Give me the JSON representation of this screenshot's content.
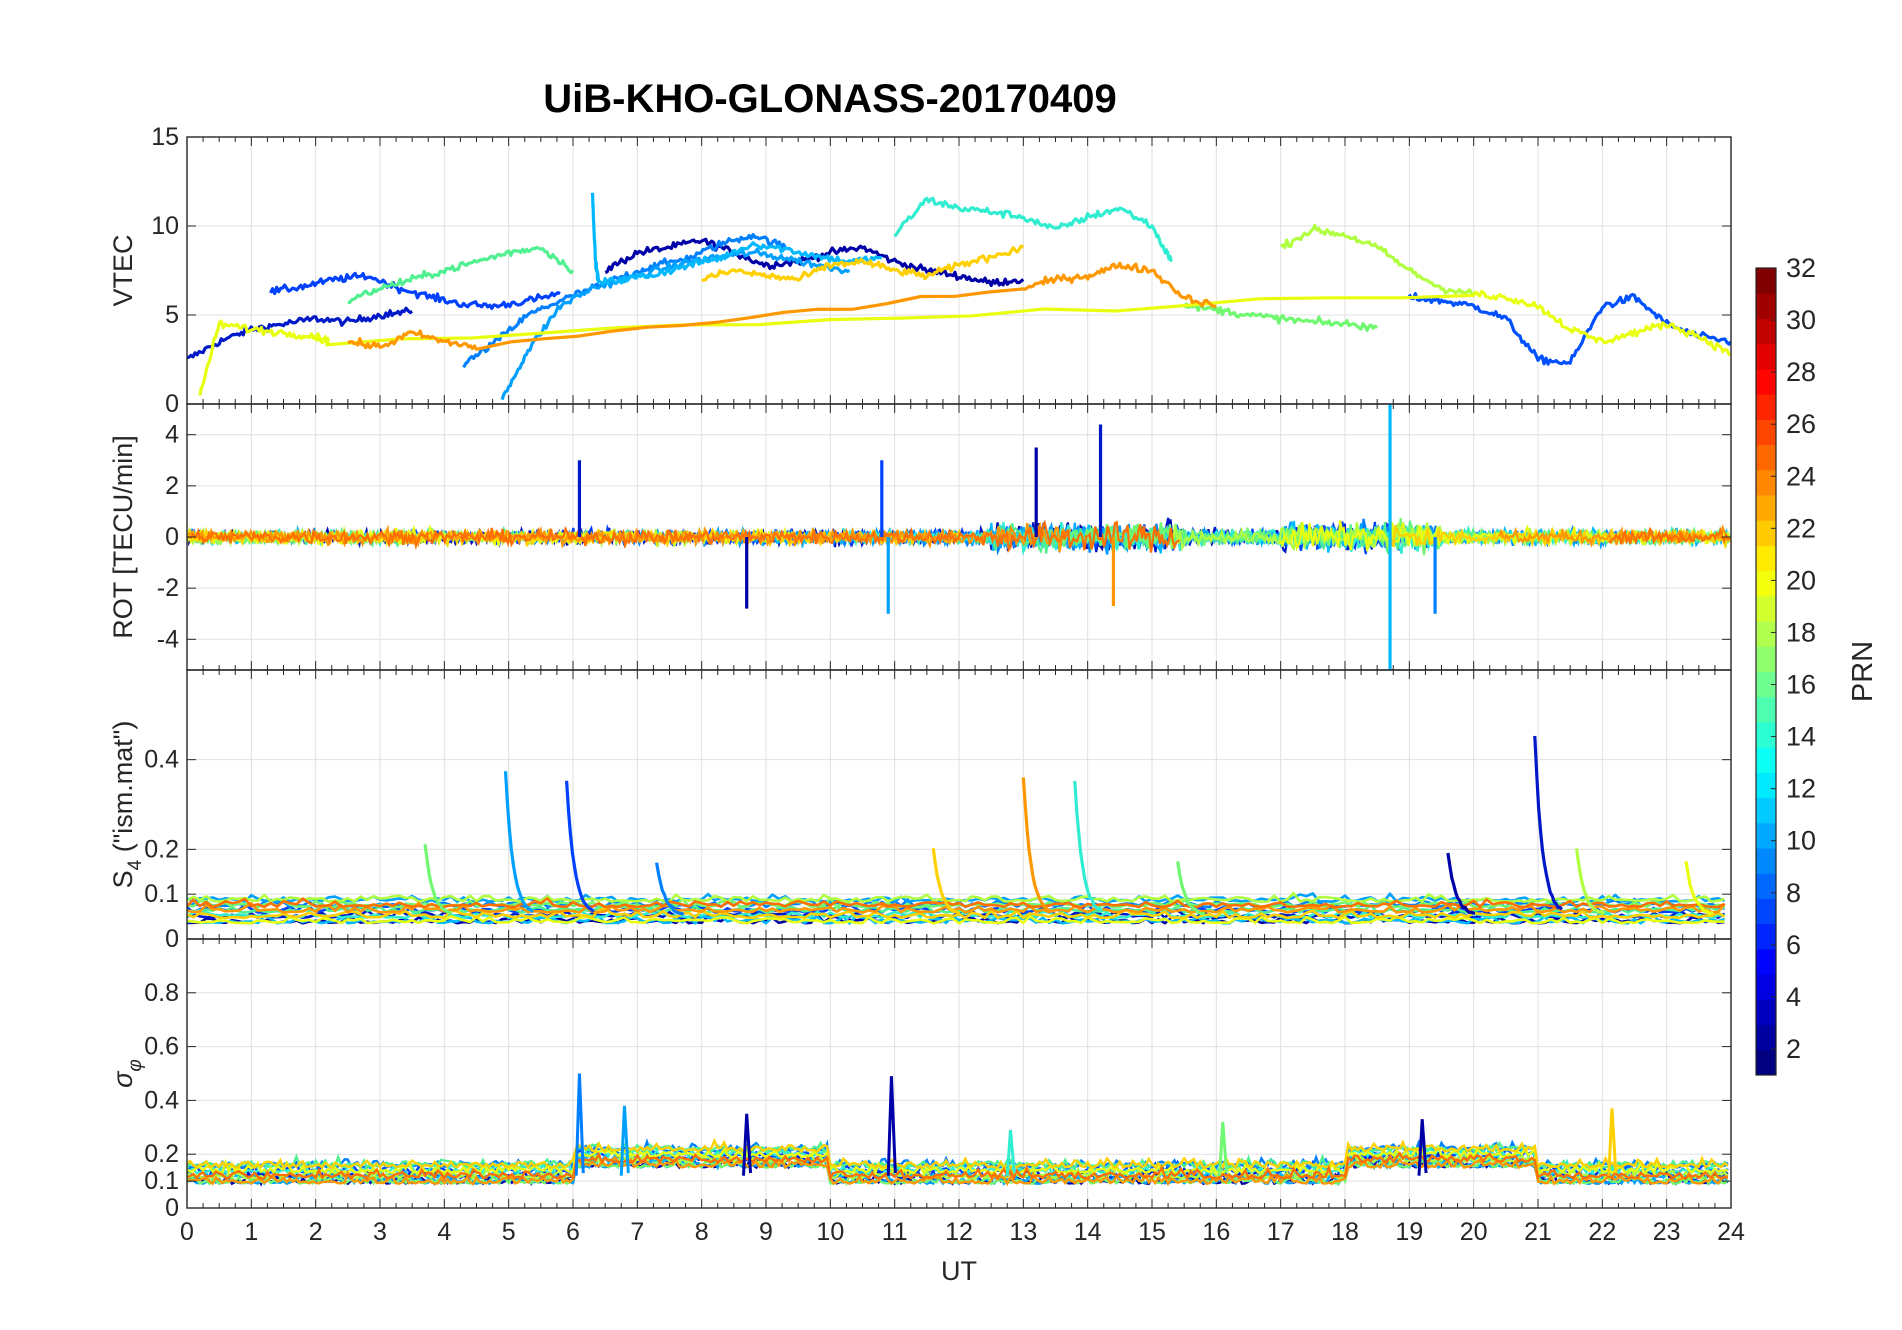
{
  "chart_data": [
    {
      "type": "line",
      "title": "UiB-KHO-GLONASS-20170409",
      "panel": "vtec",
      "ylabel": "VTEC",
      "xlabel": "",
      "xlim": [
        0,
        24
      ],
      "ylim": [
        0,
        15
      ],
      "yticks": [
        0,
        5,
        10,
        15
      ],
      "ytick_labels": [
        "0",
        "5",
        "10",
        "15"
      ],
      "grid": true,
      "series": [
        {
          "name": "PRN 2",
          "color": "#0019c8",
          "x": [
            0,
            0.5,
            1,
            1.5,
            2,
            2.5,
            3,
            3.5
          ],
          "y": [
            2.5,
            3.5,
            4.2,
            4.5,
            4.8,
            4.6,
            5.0,
            5.2
          ]
        },
        {
          "name": "PRN 3",
          "color": "#0000a8",
          "x": [
            6.5,
            7,
            7.5,
            8,
            8.5,
            9,
            9.5,
            10,
            10.5,
            11,
            11.5,
            12,
            12.5,
            13
          ],
          "y": [
            7.5,
            8.5,
            8.8,
            9.2,
            8.5,
            7.8,
            8.0,
            8.5,
            8.8,
            8.0,
            7.5,
            7.2,
            6.8,
            7.0
          ]
        },
        {
          "name": "PRN 5",
          "color": "#0040ff",
          "x": [
            1.3,
            1.8,
            2.3,
            2.8,
            3.3,
            3.8,
            4.3,
            4.8,
            5.3,
            5.8
          ],
          "y": [
            6.3,
            6.6,
            7.0,
            7.2,
            6.5,
            6.0,
            5.6,
            5.5,
            5.8,
            6.2
          ]
        },
        {
          "name": "PRN 6",
          "color": "#0050ff",
          "x": [
            19,
            19.5,
            20,
            20.5,
            21,
            21.5,
            22,
            22.5,
            23,
            23.5,
            24
          ],
          "y": [
            6.0,
            5.8,
            5.5,
            4.8,
            2.5,
            2.3,
            5.5,
            6.0,
            4.5,
            3.8,
            3.5
          ]
        },
        {
          "name": "PRN 8",
          "color": "#0080ff",
          "x": [
            4.3,
            4.8,
            5.3,
            5.8,
            6.3,
            6.8,
            7.3,
            7.8,
            8.3,
            8.8,
            9.3
          ],
          "y": [
            2.2,
            3.5,
            5.0,
            5.8,
            6.5,
            7.2,
            7.8,
            8.2,
            9.0,
            9.5,
            8.8
          ]
        },
        {
          "name": "PRN 10",
          "color": "#00a0ff",
          "x": [
            4.9,
            5.3,
            5.8,
            6.3,
            6.8,
            7.3,
            7.8,
            8.3,
            8.8,
            9.3,
            9.8,
            10.3
          ],
          "y": [
            0.3,
            3.0,
            5.5,
            6.5,
            7.0,
            7.5,
            8.0,
            8.3,
            8.5,
            8.2,
            7.8,
            7.5
          ]
        },
        {
          "name": "PRN 11",
          "color": "#00b8ff",
          "x": [
            6.3,
            6.35,
            6.4,
            6.8,
            7.3,
            7.8,
            8.3,
            8.8,
            9.3,
            9.8,
            10.3,
            10.8
          ],
          "y": [
            12.0,
            8.0,
            6.8,
            7.0,
            7.3,
            7.8,
            8.2,
            9.0,
            8.7,
            8.3,
            8.0,
            8.2
          ]
        },
        {
          "name": "PRN 13",
          "color": "#30ecd0",
          "x": [
            11.0,
            11.5,
            12.0,
            12.5,
            13.0,
            13.5,
            14.0,
            14.5,
            15.0,
            15.3
          ],
          "y": [
            9.5,
            11.5,
            11.0,
            10.8,
            10.5,
            9.8,
            10.5,
            11.0,
            10.0,
            8.0
          ]
        },
        {
          "name": "PRN 15",
          "color": "#50f090",
          "x": [
            2.5,
            3.0,
            3.5,
            4.0,
            4.5,
            5.0,
            5.5,
            6.0
          ],
          "y": [
            5.8,
            6.5,
            7.0,
            7.5,
            8.0,
            8.5,
            8.8,
            7.5
          ]
        },
        {
          "name": "PRN 16",
          "color": "#70f870",
          "x": [
            15.5,
            16.0,
            16.5,
            17.0,
            17.5,
            18.0,
            18.5
          ],
          "y": [
            5.5,
            5.3,
            5.0,
            4.8,
            4.6,
            4.5,
            4.3
          ]
        },
        {
          "name": "PRN 18",
          "color": "#b0ff40",
          "x": [
            17.0,
            17.5,
            18.0,
            18.5,
            19.0,
            19.5,
            20.0
          ],
          "y": [
            8.8,
            9.8,
            9.5,
            8.8,
            7.5,
            6.5,
            6.2
          ]
        },
        {
          "name": "PRN 20",
          "color": "#e8ff10",
          "x": [
            0.2,
            0.5,
            1.0,
            1.5,
            2.0,
            2.2,
            20.0,
            20.5,
            21.0,
            21.5,
            22.0,
            22.5,
            23.0,
            23.5,
            24.0
          ],
          "y": [
            0.5,
            4.5,
            4.2,
            4.0,
            3.8,
            3.5,
            6.2,
            6.0,
            5.5,
            4.2,
            3.5,
            4.0,
            4.5,
            3.8,
            2.8
          ]
        },
        {
          "name": "PRN 22",
          "color": "#ffd000",
          "x": [
            8.0,
            8.5,
            9.0,
            9.5,
            10.0,
            10.5,
            11.0,
            11.5,
            12.0,
            12.5,
            13.0
          ],
          "y": [
            7.0,
            7.5,
            7.2,
            7.0,
            7.8,
            8.0,
            7.5,
            7.2,
            7.8,
            8.3,
            8.8
          ]
        },
        {
          "name": "PRN 24",
          "color": "#ff9800",
          "x": [
            2.5,
            3.0,
            3.5,
            4.0,
            4.5,
            13.0,
            13.5,
            14.0,
            14.5,
            15.0,
            15.5,
            16.0
          ],
          "y": [
            3.5,
            3.2,
            4.0,
            3.5,
            3.2,
            6.5,
            7.0,
            7.2,
            7.8,
            7.5,
            6.0,
            5.5
          ]
        }
      ]
    },
    {
      "type": "line",
      "panel": "rot",
      "ylabel": "ROT [TECU/min]",
      "xlim": [
        0,
        24
      ],
      "ylim": [
        -5.2,
        5.2
      ],
      "yticks": [
        -4,
        -2,
        0,
        2,
        4
      ],
      "ytick_labels": [
        "-4",
        "-2",
        "0",
        "2",
        "4"
      ],
      "grid": true,
      "spikes": [
        {
          "x": 6.1,
          "y": 3.0,
          "color": "#0019c8"
        },
        {
          "x": 8.7,
          "y": -2.8,
          "color": "#0000a8"
        },
        {
          "x": 10.8,
          "y": 3.0,
          "color": "#0040ff"
        },
        {
          "x": 10.9,
          "y": -3.0,
          "color": "#00a0ff"
        },
        {
          "x": 13.2,
          "y": 3.5,
          "color": "#0000a8"
        },
        {
          "x": 14.2,
          "y": 4.4,
          "color": "#0019c8"
        },
        {
          "x": 14.4,
          "y": -2.7,
          "color": "#ff9800"
        },
        {
          "x": 18.7,
          "y": 5.2,
          "color": "#00b8ff"
        },
        {
          "x": 18.7,
          "y": -5.2,
          "color": "#00b8ff"
        },
        {
          "x": 19.4,
          "y": -3.0,
          "color": "#0080ff"
        }
      ]
    },
    {
      "type": "line",
      "panel": "s4",
      "ylabel": "S4 (\"ism.mat\")",
      "ylabel_main": "S",
      "ylabel_sub": "4",
      "ylabel_rest": " (\"ism.mat\")",
      "xlim": [
        0,
        24
      ],
      "ylim": [
        0,
        0.6
      ],
      "yticks": [
        0,
        0.1,
        0.2,
        0.4
      ],
      "ytick_labels": [
        "0",
        "0.1",
        "0.2",
        "0.4"
      ],
      "grid": true,
      "peaks": [
        {
          "x": 3.7,
          "y": 0.21,
          "color": "#70f870"
        },
        {
          "x": 4.95,
          "y": 0.37,
          "color": "#00a0ff"
        },
        {
          "x": 5.9,
          "y": 0.35,
          "color": "#0040ff"
        },
        {
          "x": 7.3,
          "y": 0.17,
          "color": "#0080ff"
        },
        {
          "x": 11.6,
          "y": 0.2,
          "color": "#ffd000"
        },
        {
          "x": 13.0,
          "y": 0.36,
          "color": "#ff9800"
        },
        {
          "x": 13.8,
          "y": 0.35,
          "color": "#30ecd0"
        },
        {
          "x": 15.4,
          "y": 0.17,
          "color": "#70f870"
        },
        {
          "x": 19.6,
          "y": 0.19,
          "color": "#0000a8"
        },
        {
          "x": 20.95,
          "y": 0.45,
          "color": "#0019c8"
        },
        {
          "x": 21.6,
          "y": 0.2,
          "color": "#b0ff40"
        },
        {
          "x": 23.3,
          "y": 0.17,
          "color": "#e8ff10"
        }
      ]
    },
    {
      "type": "line",
      "panel": "sigma_phi",
      "ylabel": "σφ",
      "ylabel_main": "σ",
      "ylabel_sub": "φ",
      "xlabel": "UT",
      "xlim": [
        0,
        24
      ],
      "ylim": [
        0,
        1
      ],
      "yticks": [
        0,
        0.1,
        0.2,
        0.4,
        0.6,
        0.8
      ],
      "ytick_labels": [
        "0",
        "0.1",
        "0.2",
        "0.4",
        "0.6",
        "0.8"
      ],
      "xticks": [
        0,
        1,
        2,
        3,
        4,
        5,
        6,
        7,
        8,
        9,
        10,
        11,
        12,
        13,
        14,
        15,
        16,
        17,
        18,
        19,
        20,
        21,
        22,
        23,
        24
      ],
      "xtick_labels": [
        "0",
        "1",
        "2",
        "3",
        "4",
        "5",
        "6",
        "7",
        "8",
        "9",
        "10",
        "11",
        "12",
        "13",
        "14",
        "15",
        "16",
        "17",
        "18",
        "19",
        "20",
        "21",
        "22",
        "23",
        "24"
      ],
      "grid": true,
      "peaks": [
        {
          "x": 6.1,
          "y": 0.5,
          "color": "#0080ff"
        },
        {
          "x": 6.8,
          "y": 0.38,
          "color": "#00a0ff"
        },
        {
          "x": 8.7,
          "y": 0.35,
          "color": "#0000a8"
        },
        {
          "x": 10.95,
          "y": 0.49,
          "color": "#0000a8"
        },
        {
          "x": 12.8,
          "y": 0.29,
          "color": "#30ecd0"
        },
        {
          "x": 16.1,
          "y": 0.32,
          "color": "#70f870"
        },
        {
          "x": 19.2,
          "y": 0.33,
          "color": "#0000a8"
        },
        {
          "x": 22.15,
          "y": 0.37,
          "color": "#ffd000"
        }
      ]
    }
  ],
  "colorbar": {
    "label": "PRN",
    "min": 1,
    "max": 32,
    "ticks": [
      2,
      4,
      6,
      8,
      10,
      12,
      14,
      16,
      18,
      20,
      22,
      24,
      26,
      28,
      30,
      32
    ],
    "tick_labels": [
      "2",
      "4",
      "6",
      "8",
      "10",
      "12",
      "14",
      "16",
      "18",
      "20",
      "22",
      "24",
      "26",
      "28",
      "30",
      "32"
    ]
  }
}
